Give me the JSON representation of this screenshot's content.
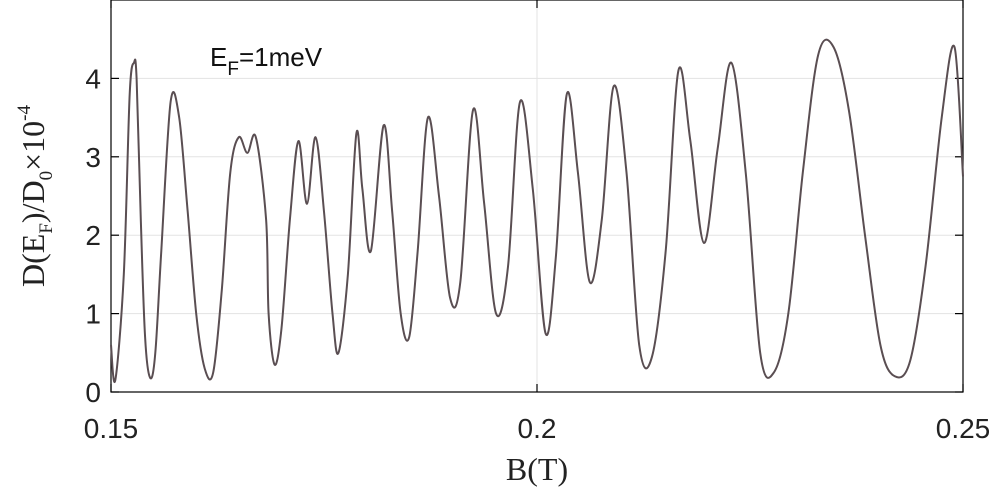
{
  "chart_data": {
    "type": "line",
    "xlabel": "B(T)",
    "ylabel": {
      "prefix": "D(E",
      "sub1": "F",
      "middle": ")/D",
      "sub2": "0",
      "times": "×10",
      "exp": "-4"
    },
    "annotation": {
      "main": "E",
      "sub": "F",
      "rest": "=1meV"
    },
    "xlim": [
      0.15,
      0.25
    ],
    "ylim": [
      0,
      5
    ],
    "xticks": [
      0.15,
      0.2,
      0.25
    ],
    "xtick_labels": [
      "0.15",
      "0.2",
      "0.25"
    ],
    "yticks": [
      0,
      1,
      2,
      3,
      4
    ],
    "ytick_labels": [
      "0",
      "1",
      "2",
      "3",
      "4"
    ],
    "grid": true,
    "line_color": "#5a4e52",
    "series": [
      {
        "x": [
          0.15,
          0.1505,
          0.1515,
          0.1522,
          0.1527,
          0.153,
          0.1535,
          0.154,
          0.1546,
          0.1552,
          0.1559,
          0.157,
          0.158,
          0.159,
          0.16,
          0.161,
          0.162,
          0.163,
          0.164,
          0.165,
          0.166,
          0.167,
          0.1682,
          0.1685,
          0.1692,
          0.17,
          0.171,
          0.172,
          0.173,
          0.174,
          0.175,
          0.176,
          0.1767,
          0.1778,
          0.1788,
          0.1795,
          0.1805,
          0.182,
          0.183,
          0.184,
          0.185,
          0.186,
          0.1872,
          0.1885,
          0.1898,
          0.191,
          0.1925,
          0.1938,
          0.1952,
          0.1966,
          0.198,
          0.1995,
          0.201,
          0.2022,
          0.2035,
          0.2048,
          0.2062,
          0.2076,
          0.209,
          0.2105,
          0.212,
          0.2135,
          0.2151,
          0.2166,
          0.218,
          0.2196,
          0.2212,
          0.2228,
          0.2245,
          0.2262,
          0.2278,
          0.2295,
          0.2312,
          0.233,
          0.2348,
          0.2366,
          0.2385,
          0.2403,
          0.242,
          0.2438,
          0.2456,
          0.2475,
          0.249,
          0.25
        ],
        "y": [
          0.6,
          0.15,
          1.5,
          3.8,
          4.2,
          4.0,
          2.2,
          0.7,
          0.18,
          0.5,
          1.8,
          3.7,
          3.5,
          2.3,
          1.0,
          0.3,
          0.25,
          1.3,
          2.8,
          3.25,
          3.05,
          3.25,
          2.2,
          1.0,
          0.35,
          0.8,
          2.2,
          3.2,
          2.4,
          3.25,
          2.3,
          1.0,
          0.5,
          1.5,
          3.3,
          2.6,
          1.8,
          3.4,
          2.3,
          1.0,
          0.7,
          1.8,
          3.5,
          2.5,
          1.2,
          1.4,
          3.6,
          2.4,
          1.0,
          1.6,
          3.7,
          2.6,
          0.75,
          1.7,
          3.8,
          2.8,
          1.4,
          2.2,
          3.9,
          2.8,
          0.6,
          0.45,
          1.8,
          4.1,
          3.2,
          1.9,
          3.1,
          4.2,
          2.8,
          0.5,
          0.25,
          1.0,
          2.8,
          4.3,
          4.4,
          3.6,
          2.0,
          0.6,
          0.2,
          0.4,
          1.6,
          3.5,
          4.4,
          2.75
        ]
      }
    ]
  }
}
